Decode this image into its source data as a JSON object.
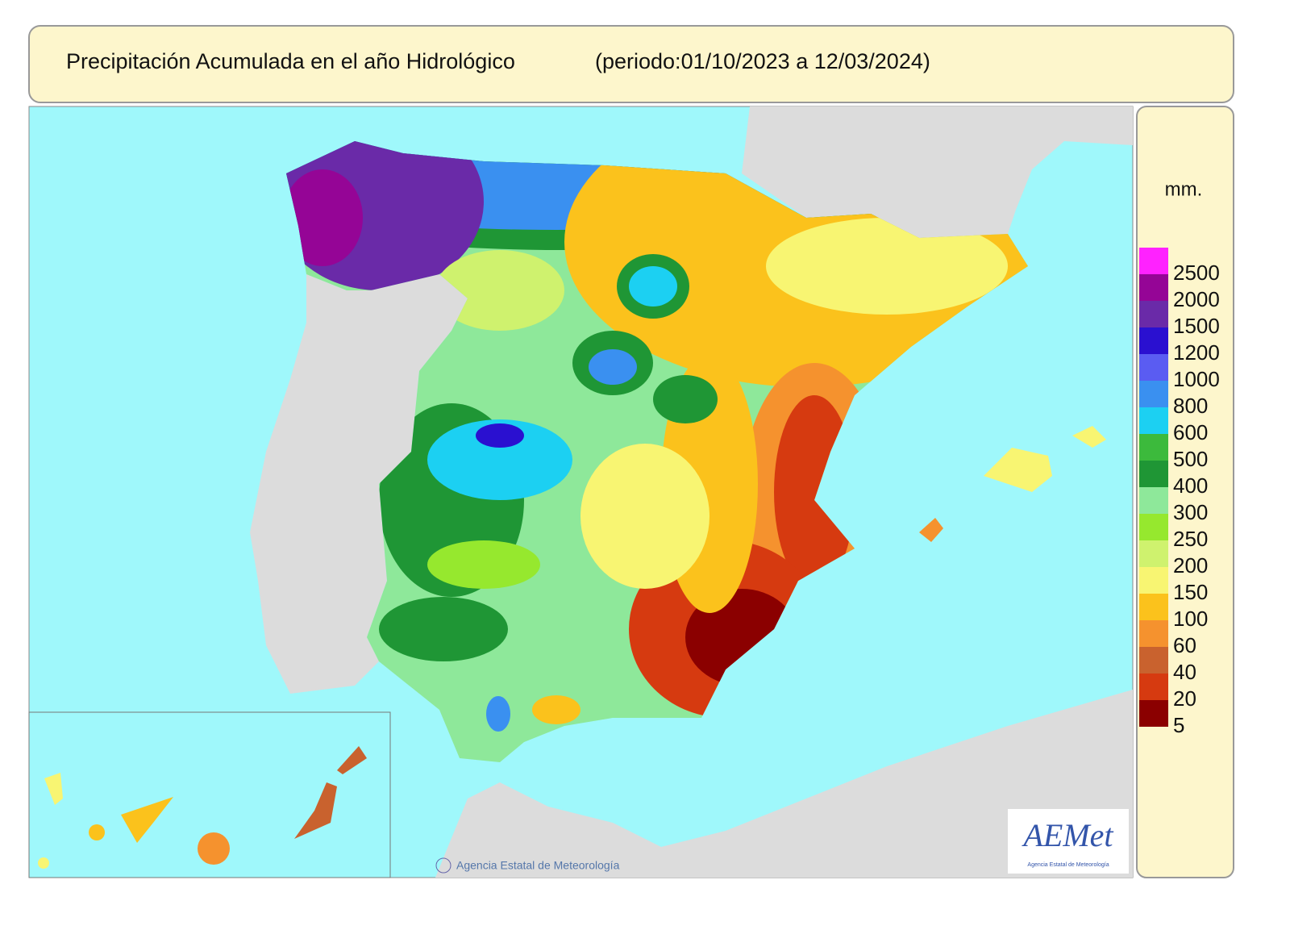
{
  "header": {
    "title": "Precipitación Acumulada en el año Hidrológico",
    "period": "(periodo:01/10/2023 a 12/03/2024)"
  },
  "legend": {
    "unit": "mm.",
    "labels": [
      2500,
      2000,
      1500,
      1200,
      1000,
      800,
      600,
      500,
      400,
      300,
      250,
      200,
      150,
      100,
      60,
      40,
      20,
      5
    ],
    "colors": [
      "#ff22ff",
      "#950596",
      "#6a2aa8",
      "#2a10d0",
      "#5a5cf2",
      "#3a90f0",
      "#1cd0f2",
      "#3cba3c",
      "#1f9635",
      "#8ee89a",
      "#96e82e",
      "#cff26e",
      "#f8f572",
      "#fbc21c",
      "#f5922e",
      "#c9622e",
      "#d63a10",
      "#8b0000"
    ]
  },
  "credit": "Agencia Estatal de Meteorología",
  "logo": {
    "name": "AEMet",
    "subtitle": "Agencia Estatal de Meteorología"
  }
}
